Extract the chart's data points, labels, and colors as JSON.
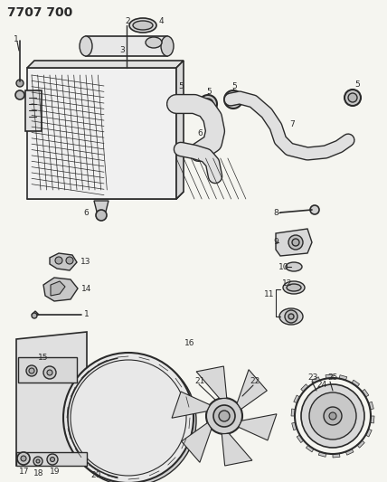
{
  "title": "7707 700",
  "bg_color": "#f5f5f0",
  "line_color": "#2a2a2a",
  "title_fontsize": 10,
  "label_fontsize": 6.5,
  "fig_width": 4.28,
  "fig_height": 5.33,
  "dpi": 100
}
